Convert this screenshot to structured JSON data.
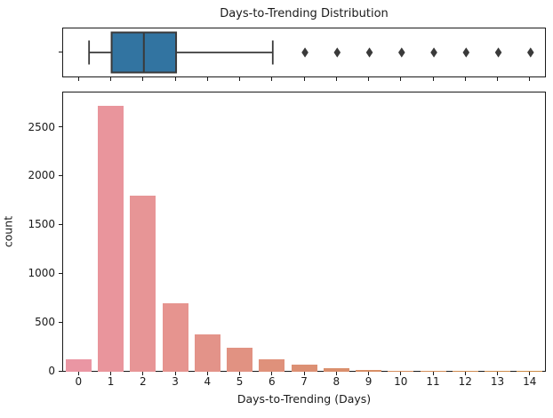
{
  "figure": {
    "title": "Days-to-Trending Distribution",
    "xlabel": "Days-to-Trending (Days)",
    "ylabel": "count",
    "background": "#ffffff",
    "text_color": "#1a1a1a"
  },
  "chart_data": [
    {
      "type": "boxplot",
      "orientation": "horizontal",
      "title": "Days-to-Trending Distribution",
      "whisker_low": 0.3,
      "q1": 1,
      "median": 2,
      "q3": 3,
      "whisker_high": 6,
      "outliers": [
        7,
        8,
        9,
        10,
        11,
        12,
        13,
        14
      ],
      "xlim": [
        -0.5,
        14.5
      ],
      "box_fill_color": "#3274a1",
      "line_color": "#3a3a3a",
      "legend": "off",
      "grid": "off"
    },
    {
      "type": "bar",
      "categories": [
        "0",
        "1",
        "2",
        "3",
        "4",
        "5",
        "6",
        "7",
        "8",
        "9",
        "10",
        "11",
        "12",
        "13",
        "14"
      ],
      "values": [
        130,
        2720,
        1800,
        705,
        380,
        250,
        130,
        70,
        40,
        15,
        12,
        12,
        12,
        10,
        10
      ],
      "xlabel": "Days-to-Trending (Days)",
      "ylabel": "count",
      "ylim": [
        0,
        2860
      ],
      "yticks": [
        0,
        500,
        1000,
        1500,
        2000,
        2500
      ],
      "bar_colors": [
        "#ea96a3",
        "#e9959c",
        "#e79596",
        "#e6948f",
        "#e39389",
        "#e19282",
        "#df917b",
        "#dc9074",
        "#da8f6d",
        "#d78e66",
        "#d48d5f",
        "#d28c58",
        "#cf8b51",
        "#cd8a4a",
        "#ca8943"
      ],
      "grid": "off",
      "legend": "off"
    }
  ]
}
